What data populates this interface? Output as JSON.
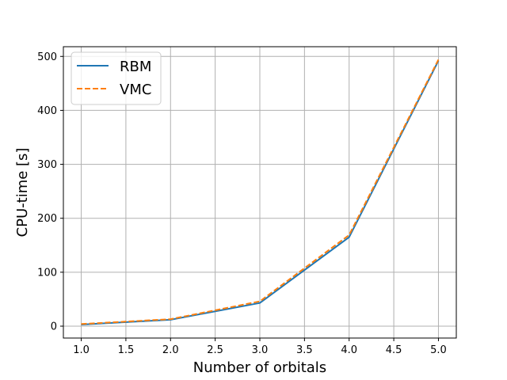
{
  "chart_data": {
    "type": "line",
    "title": "",
    "xlabel": "Number of orbitals",
    "ylabel": "CPU-time [s]",
    "x": [
      1,
      2,
      3,
      4,
      5
    ],
    "xlim": [
      0.8,
      5.2
    ],
    "ylim": [
      -22,
      518
    ],
    "xticks": [
      1.0,
      1.5,
      2.0,
      2.5,
      3.0,
      3.5,
      4.0,
      4.5,
      5.0
    ],
    "xtick_labels": [
      "1.0",
      "1.5",
      "2.0",
      "2.5",
      "3.0",
      "3.5",
      "4.0",
      "4.5",
      "5.0"
    ],
    "yticks": [
      0,
      100,
      200,
      300,
      400,
      500
    ],
    "ytick_labels": [
      "0",
      "100",
      "200",
      "300",
      "400",
      "500"
    ],
    "grid": true,
    "legend": "upper-left",
    "series": [
      {
        "name": "RBM",
        "values": [
          3,
          12,
          43,
          165,
          492
        ],
        "color": "#1f77b4",
        "style": "solid"
      },
      {
        "name": "VMC",
        "values": [
          4,
          13,
          46,
          169,
          494
        ],
        "color": "#ff7f0e",
        "style": "dashed"
      }
    ]
  }
}
